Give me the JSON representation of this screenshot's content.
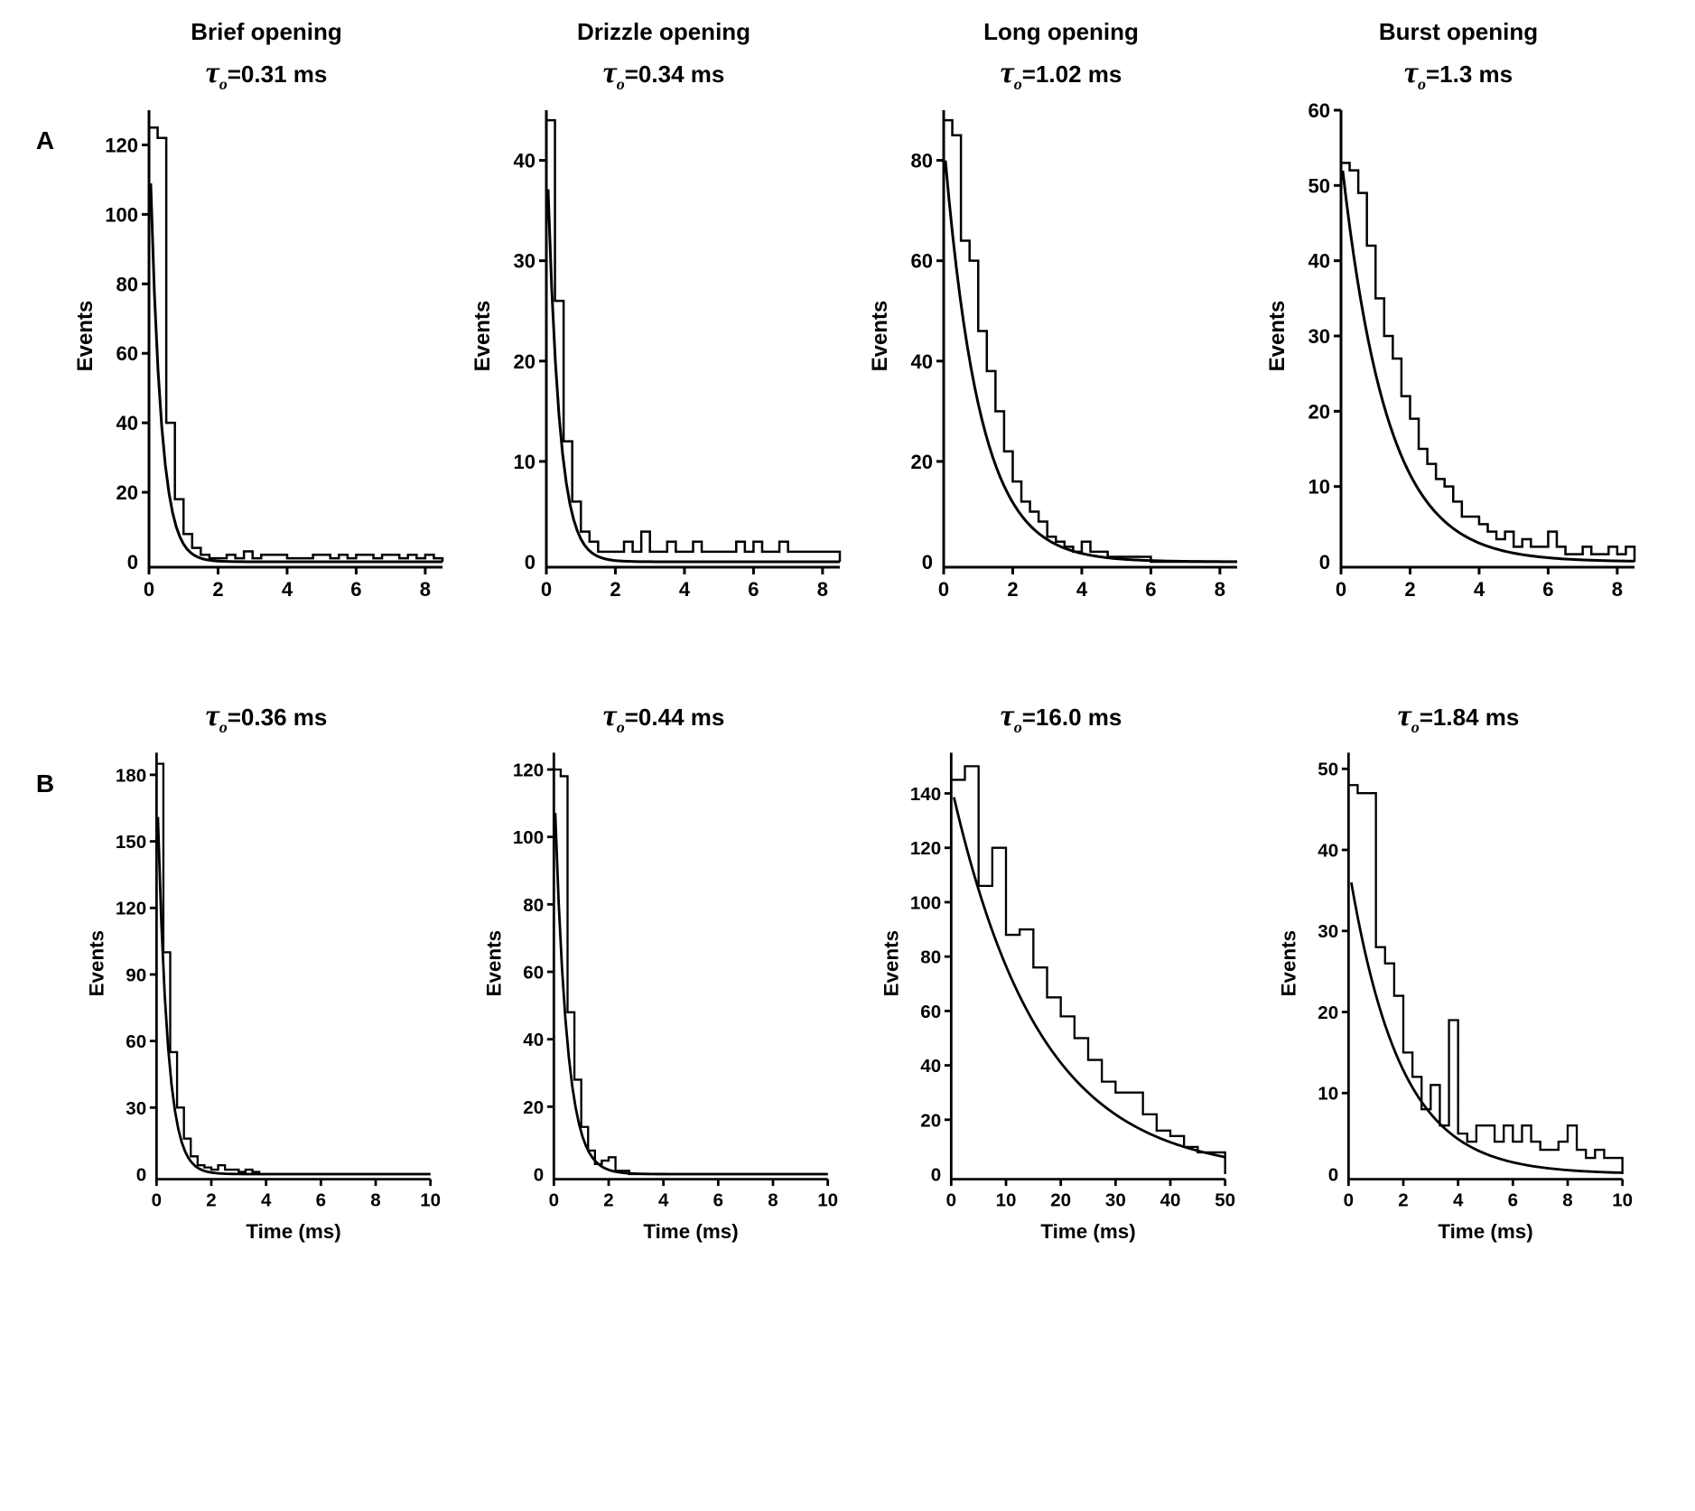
{
  "layout": {
    "rows": 2,
    "cols": 4,
    "row_labels": [
      "A",
      "B"
    ],
    "col_titles": [
      "Brief opening",
      "Drizzle opening",
      "Long opening",
      "Burst opening"
    ],
    "ylabel": "Events",
    "xlabel": "Time (ms)",
    "font": {
      "title_size_pt": 26,
      "title_weight": "bold",
      "tau_size_pt": 26,
      "tau_symbol_size_pt": 34,
      "axis_tick_size_pt": 22,
      "axis_label_size_pt": 24,
      "family": "Arial"
    },
    "colors": {
      "background": "#ffffff",
      "axis": "#000000",
      "histogram": "#000000",
      "curve": "#000000"
    },
    "line_widths": {
      "axis": 3,
      "histogram": 2.5,
      "curve": 3
    }
  },
  "panels": [
    {
      "row": "A",
      "col": 0,
      "tau_label": "=0.31 ms",
      "tau_value": 0.31,
      "xlim": [
        0,
        8.5
      ],
      "xticks": [
        0,
        2,
        4,
        6,
        8
      ],
      "ylim": [
        0,
        130
      ],
      "yticks": [
        20,
        40,
        60,
        80,
        100,
        120
      ],
      "bin_width": 0.25,
      "histogram": [
        125,
        122,
        40,
        18,
        8,
        4,
        2,
        1,
        1,
        2,
        1,
        3,
        1,
        2,
        2,
        2,
        1,
        1,
        1,
        2,
        2,
        1,
        2,
        1,
        2,
        2,
        1,
        2,
        2,
        1,
        2,
        1,
        2,
        1
      ],
      "curve": {
        "A0": 128,
        "tau": 0.31,
        "xstart": 0.05,
        "xend": 8.5,
        "steps": 80
      }
    },
    {
      "row": "A",
      "col": 1,
      "tau_label": "=0.34 ms",
      "tau_value": 0.34,
      "xlim": [
        0,
        8.5
      ],
      "xticks": [
        0,
        2,
        4,
        6,
        8
      ],
      "ylim": [
        0,
        45
      ],
      "yticks": [
        10,
        20,
        30,
        40
      ],
      "bin_width": 0.25,
      "histogram": [
        44,
        26,
        12,
        6,
        3,
        2,
        1,
        1,
        1,
        2,
        1,
        3,
        1,
        1,
        2,
        1,
        1,
        2,
        1,
        1,
        1,
        1,
        2,
        1,
        2,
        1,
        1,
        2,
        1,
        1,
        1,
        1,
        1,
        1
      ],
      "curve": {
        "A0": 43,
        "tau": 0.34,
        "xstart": 0.05,
        "xend": 8.5,
        "steps": 80
      }
    },
    {
      "row": "A",
      "col": 2,
      "tau_label": "=1.02 ms",
      "tau_value": 1.02,
      "xlim": [
        0,
        8.5
      ],
      "xticks": [
        0,
        2,
        4,
        6,
        8
      ],
      "ylim": [
        0,
        90
      ],
      "yticks": [
        20,
        40,
        60,
        80
      ],
      "bin_width": 0.25,
      "histogram": [
        88,
        85,
        64,
        60,
        46,
        38,
        30,
        22,
        16,
        12,
        10,
        8,
        5,
        4,
        3,
        2,
        4,
        2,
        2,
        1,
        1,
        1,
        1,
        1,
        0,
        0,
        0,
        0,
        0,
        0,
        0,
        0,
        0,
        0
      ],
      "curve": {
        "A0": 84,
        "tau": 1.02,
        "xstart": 0.05,
        "xend": 8.5,
        "steps": 80
      }
    },
    {
      "row": "A",
      "col": 3,
      "tau_label": "=1.3 ms",
      "tau_value": 1.3,
      "xlim": [
        0,
        8.5
      ],
      "xticks": [
        0,
        2,
        4,
        6,
        8
      ],
      "ylim": [
        0,
        60
      ],
      "yticks": [
        10,
        20,
        30,
        40,
        50,
        60
      ],
      "bin_width": 0.25,
      "histogram": [
        53,
        52,
        49,
        42,
        35,
        30,
        27,
        22,
        19,
        15,
        13,
        11,
        10,
        8,
        6,
        6,
        5,
        4,
        3,
        4,
        2,
        3,
        2,
        2,
        4,
        2,
        1,
        1,
        2,
        1,
        1,
        2,
        1,
        2
      ],
      "curve": {
        "A0": 54,
        "tau": 1.3,
        "xstart": 0.05,
        "xend": 8.5,
        "steps": 80
      }
    },
    {
      "row": "B",
      "col": 0,
      "tau_label": "=0.36 ms",
      "tau_value": 0.36,
      "xlim": [
        0,
        10
      ],
      "xticks": [
        0,
        2,
        4,
        6,
        8,
        10
      ],
      "ylim": [
        0,
        190
      ],
      "yticks": [
        30,
        60,
        90,
        120,
        150,
        180
      ],
      "bin_width": 0.25,
      "histogram": [
        185,
        100,
        55,
        30,
        16,
        8,
        4,
        3,
        2,
        4,
        2,
        2,
        1,
        2,
        1,
        0,
        0,
        0,
        0,
        0,
        0,
        0,
        0,
        0,
        0,
        0,
        0,
        0,
        0,
        0,
        0,
        0,
        0,
        0,
        0,
        0,
        0,
        0,
        0,
        0
      ],
      "curve": {
        "A0": 185,
        "tau": 0.36,
        "xstart": 0.05,
        "xend": 10,
        "steps": 80
      }
    },
    {
      "row": "B",
      "col": 1,
      "tau_label": "=0.44 ms",
      "tau_value": 0.44,
      "xlim": [
        0,
        10
      ],
      "xticks": [
        0,
        2,
        4,
        6,
        8,
        10
      ],
      "ylim": [
        0,
        125
      ],
      "yticks": [
        20,
        40,
        60,
        80,
        100,
        120
      ],
      "bin_width": 0.25,
      "histogram": [
        120,
        118,
        48,
        28,
        14,
        7,
        3,
        4,
        5,
        1,
        1,
        0,
        0,
        0,
        0,
        0,
        0,
        0,
        0,
        0,
        0,
        0,
        0,
        0,
        0,
        0,
        0,
        0,
        0,
        0,
        0,
        0,
        0,
        0,
        0,
        0,
        0,
        0,
        0,
        0
      ],
      "curve": {
        "A0": 120,
        "tau": 0.44,
        "xstart": 0.05,
        "xend": 10,
        "steps": 80
      }
    },
    {
      "row": "B",
      "col": 2,
      "tau_label": "=16.0 ms",
      "tau_value": 16.0,
      "xlim": [
        0,
        50
      ],
      "xticks": [
        0,
        10,
        20,
        30,
        40,
        50
      ],
      "ylim": [
        0,
        155
      ],
      "yticks": [
        20,
        40,
        60,
        80,
        100,
        120,
        140
      ],
      "bin_width": 2.5,
      "histogram": [
        145,
        150,
        106,
        120,
        88,
        90,
        76,
        65,
        58,
        50,
        42,
        34,
        30,
        30,
        22,
        16,
        14,
        10,
        8,
        8
      ],
      "curve": {
        "A0": 143,
        "tau": 16.0,
        "xstart": 0.5,
        "xend": 50,
        "steps": 80
      }
    },
    {
      "row": "B",
      "col": 3,
      "tau_label": "=1.84 ms",
      "tau_value": 1.84,
      "xlim": [
        0,
        10
      ],
      "xticks": [
        0,
        2,
        4,
        6,
        8,
        10
      ],
      "ylim": [
        0,
        52
      ],
      "yticks": [
        10,
        20,
        30,
        40,
        50
      ],
      "bin_width": 0.3333,
      "histogram": [
        48,
        47,
        47,
        28,
        26,
        22,
        15,
        12,
        8,
        11,
        6,
        19,
        5,
        4,
        6,
        6,
        4,
        6,
        4,
        6,
        4,
        3,
        3,
        4,
        6,
        3,
        2,
        3,
        2,
        2
      ],
      "curve": {
        "A0": 38,
        "tau": 1.84,
        "xstart": 0.1,
        "xend": 10,
        "steps": 80
      }
    }
  ]
}
